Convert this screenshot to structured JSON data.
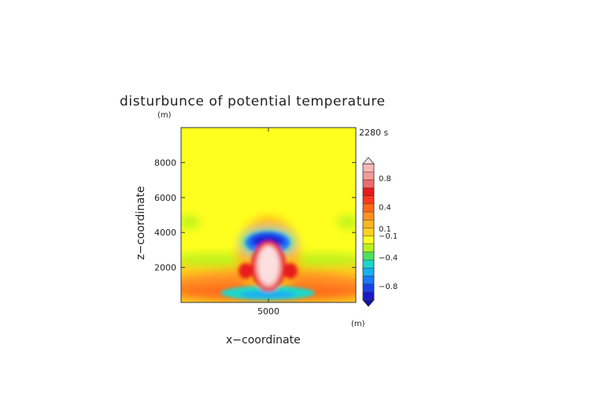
{
  "figure": {
    "title": "disturbunce of potential temperature",
    "time_label": "2280 s",
    "y_unit": "(m)",
    "x_unit": "(m)"
  },
  "chart_data": {
    "type": "heatmap",
    "title": "disturbunce of potential temperature",
    "xlabel": "x−coordinate",
    "ylabel": "z−coordinate",
    "x_unit": "(m)",
    "y_unit": "(m)",
    "time": "2280 s",
    "xlim": [
      0,
      10000
    ],
    "ylim": [
      0,
      10000
    ],
    "x_ticks": [
      5000
    ],
    "x_tick_labels": [
      "5000"
    ],
    "y_ticks": [
      2000,
      4000,
      6000,
      8000
    ],
    "y_tick_labels": [
      "2000",
      "4000",
      "6000",
      "8000"
    ],
    "grid": false,
    "colorbar": {
      "levels": [
        -1.0,
        -0.9,
        -0.8,
        -0.7,
        -0.6,
        -0.5,
        -0.4,
        -0.3,
        -0.2,
        -0.1,
        0.1,
        0.2,
        0.3,
        0.4,
        0.5,
        0.6,
        0.7,
        0.8,
        0.9,
        1.0
      ],
      "tick_values": [
        0.8,
        0.4,
        0.1,
        -0.1,
        -0.4,
        -0.8
      ],
      "tick_labels": [
        "0.8",
        "0.4",
        "0.1",
        "−0.1",
        "−0.4",
        "−0.8"
      ],
      "colors_top_to_bottom": [
        "#f7b8b8",
        "#f39a9a",
        "#ec6d6d",
        "#e81a1a",
        "#ff3a1a",
        "#ff6a1a",
        "#ff9020",
        "#ffb61f",
        "#ffd21f",
        "#ffff1f",
        "#b8f21c",
        "#50e060",
        "#1ad8c8",
        "#1ab0f0",
        "#1a78f8",
        "#1a40e8",
        "#1818c8"
      ],
      "extend": "both",
      "position": "right"
    },
    "field_description": "thermal plume centered at x=5000 m",
    "features": [
      {
        "name": "warm core",
        "x": 5000,
        "z_range": [
          800,
          3200
        ],
        "value": 1.0
      },
      {
        "name": "cold cap",
        "x": 5000,
        "z_range": [
          3100,
          4100
        ],
        "value": -0.8
      },
      {
        "name": "warm lower layer",
        "z_range": [
          0,
          1500
        ],
        "value": 0.4
      },
      {
        "name": "cold base",
        "x": 5000,
        "z_range": [
          0,
          500
        ],
        "value": -0.4
      }
    ]
  }
}
